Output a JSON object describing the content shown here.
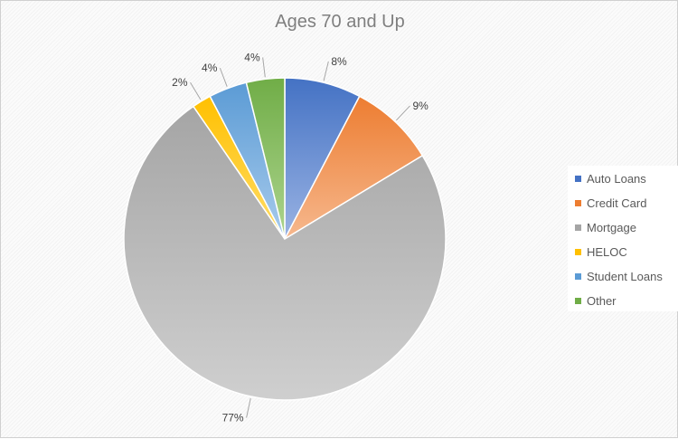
{
  "chart_data": {
    "type": "pie",
    "title": "Ages 70 and Up",
    "slices": [
      {
        "label": "Auto Loans",
        "value": 8,
        "display": "8%",
        "color": "#4472c4",
        "light": "#9ab3e3"
      },
      {
        "label": "Credit Card",
        "value": 9,
        "display": "9%",
        "color": "#ed7d31",
        "light": "#f6b88e"
      },
      {
        "label": "Mortgage",
        "value": 77,
        "display": "77%",
        "color": "#a5a5a5",
        "light": "#cfcfcf"
      },
      {
        "label": "HELOC",
        "value": 2,
        "display": "2%",
        "color": "#ffc000",
        "light": "#ffdd6a"
      },
      {
        "label": "Student Loans",
        "value": 4,
        "display": "4%",
        "color": "#5b9bd5",
        "light": "#a8cbec"
      },
      {
        "label": "Other",
        "value": 4,
        "display": "4%",
        "color": "#70ad47",
        "light": "#add48e"
      }
    ],
    "legend_position": "right"
  }
}
